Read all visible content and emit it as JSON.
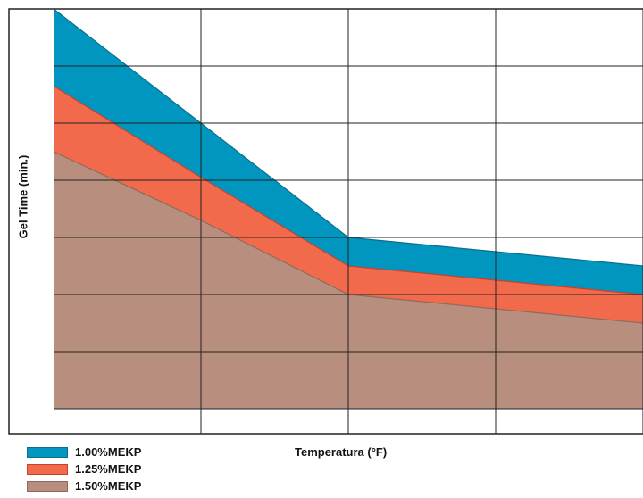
{
  "chart_data": {
    "type": "area",
    "title": "",
    "xlabel": "Temperatura (°F)",
    "ylabel": "Gel Time (min.)",
    "x": [
      0,
      1,
      2,
      3,
      4
    ],
    "xlim": [
      0,
      4
    ],
    "ylim": [
      0,
      7
    ],
    "grid": true,
    "legend_position": "bottom-left",
    "series": [
      {
        "name": "1.00%MEKP",
        "color": "#0096c0",
        "values": [
          7.0,
          5.0,
          3.0,
          2.75,
          2.5
        ]
      },
      {
        "name": "1.25%MEKP",
        "color": "#f26a4c",
        "values": [
          5.65,
          4.05,
          2.5,
          2.25,
          2.0
        ]
      },
      {
        "name": "1.50%MEKP",
        "color": "#b88f7f",
        "values": [
          4.5,
          3.3,
          2.0,
          1.75,
          1.5
        ]
      }
    ]
  }
}
